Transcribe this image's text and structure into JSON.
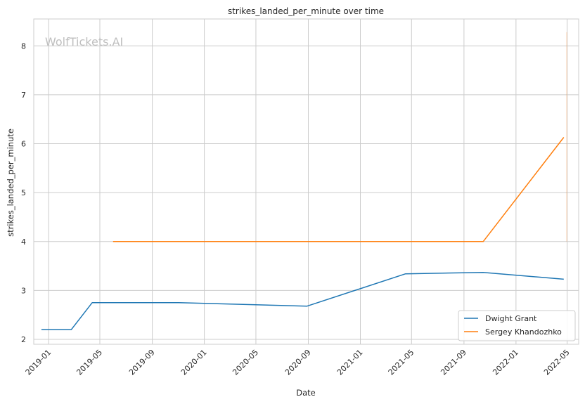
{
  "watermark": "WolfTickets.AI",
  "chart_data": {
    "type": "line",
    "title": "strikes_landed_per_minute over time",
    "xlabel": "Date",
    "ylabel": "strikes_landed_per_minute",
    "x_ticks": [
      "2019-01",
      "2019-05",
      "2019-09",
      "2020-01",
      "2020-05",
      "2020-09",
      "2021-01",
      "2021-05",
      "2021-09",
      "2022-01",
      "2022-05"
    ],
    "y_ticks": [
      2,
      3,
      4,
      5,
      6,
      7,
      8
    ],
    "xlim": [
      "2018-11-27",
      "2022-05-28"
    ],
    "ylim": [
      1.9,
      8.55
    ],
    "grid": true,
    "legend_position": "bottom-right",
    "series": [
      {
        "name": "Dwight Grant",
        "color": "#1f77b4",
        "points": [
          {
            "x": "2018-12-15",
            "y": 2.2
          },
          {
            "x": "2019-02-23",
            "y": 2.2
          },
          {
            "x": "2019-04-13",
            "y": 2.75
          },
          {
            "x": "2019-11-02",
            "y": 2.75
          },
          {
            "x": "2020-08-29",
            "y": 2.68
          },
          {
            "x": "2021-04-17",
            "y": 3.34
          },
          {
            "x": "2021-10-16",
            "y": 3.37
          },
          {
            "x": "2022-04-23",
            "y": 3.23
          }
        ]
      },
      {
        "name": "Sergey Khandozhko",
        "color": "#ff7f0e",
        "points": [
          {
            "x": "2019-06-01",
            "y": 4.0
          },
          {
            "x": "2021-10-16",
            "y": 4.0
          },
          {
            "x": "2022-04-23",
            "y": 6.13
          }
        ]
      }
    ],
    "annotations": [
      {
        "type": "vertical-line",
        "x": "2022-04-30",
        "y_from": 4.0,
        "y_to": 8.28,
        "color": "#ff7f0e",
        "opacity": 0.2
      }
    ]
  }
}
